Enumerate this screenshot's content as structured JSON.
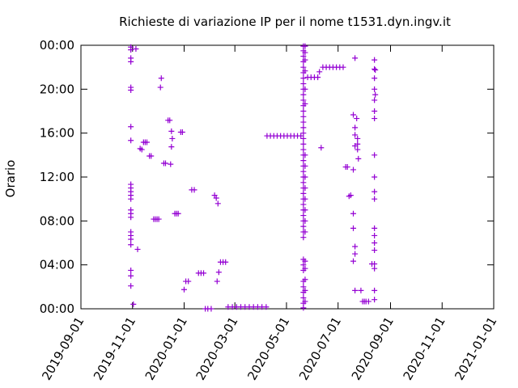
{
  "chart_data": {
    "type": "scatter",
    "title": "Richieste di variazione IP per il nome t1531.dyn.ingv.it",
    "xlabel": "",
    "ylabel": "Orario",
    "xlim": [
      "2019-09-01",
      "2021-01-01"
    ],
    "ylim": [
      "00:00",
      "24:00"
    ],
    "x_ticks": [
      "2019-09-01",
      "2019-11-01",
      "2020-01-01",
      "2020-03-01",
      "2020-05-01",
      "2020-07-01",
      "2020-09-01",
      "2020-11-01",
      "2021-01-01"
    ],
    "y_ticks": [
      "00:00",
      "04:00",
      "08:00",
      "12:00",
      "16:00",
      "20:00",
      "00:00"
    ],
    "marker": "+",
    "color": "#9400d3",
    "grid": false,
    "points": [
      [
        "2019-10-30",
        "23:50"
      ],
      [
        "2019-10-30",
        "23:35"
      ],
      [
        "2019-10-30",
        "22:50"
      ],
      [
        "2019-10-30",
        "22:30"
      ],
      [
        "2019-10-30",
        "20:10"
      ],
      [
        "2019-10-30",
        "19:55"
      ],
      [
        "2019-10-30",
        "16:35"
      ],
      [
        "2019-10-30",
        "15:20"
      ],
      [
        "2019-10-30",
        "11:20"
      ],
      [
        "2019-10-30",
        "11:00"
      ],
      [
        "2019-10-30",
        "10:40"
      ],
      [
        "2019-10-30",
        "10:20"
      ],
      [
        "2019-10-30",
        "10:00"
      ],
      [
        "2019-10-30",
        "09:00"
      ],
      [
        "2019-10-30",
        "08:40"
      ],
      [
        "2019-10-30",
        "08:20"
      ],
      [
        "2019-10-30",
        "07:00"
      ],
      [
        "2019-10-30",
        "06:40"
      ],
      [
        "2019-10-30",
        "06:20"
      ],
      [
        "2019-10-30",
        "05:50"
      ],
      [
        "2019-10-30",
        "03:30"
      ],
      [
        "2019-10-30",
        "03:00"
      ],
      [
        "2019-10-30",
        "02:05"
      ],
      [
        "2019-11-02",
        "00:25"
      ],
      [
        "2019-11-05",
        "23:40"
      ],
      [
        "2019-11-07",
        "05:25"
      ],
      [
        "2019-11-10",
        "14:35"
      ],
      [
        "2019-11-12",
        "14:30"
      ],
      [
        "2019-11-14",
        "15:10"
      ],
      [
        "2019-11-16",
        "15:10"
      ],
      [
        "2019-11-18",
        "15:10"
      ],
      [
        "2019-11-21",
        "13:55"
      ],
      [
        "2019-11-23",
        "13:55"
      ],
      [
        "2019-11-26",
        "08:10"
      ],
      [
        "2019-11-28",
        "08:10"
      ],
      [
        "2019-11-30",
        "08:10"
      ],
      [
        "2019-12-02",
        "08:10"
      ],
      [
        "2019-12-04",
        "20:10"
      ],
      [
        "2019-12-05",
        "21:00"
      ],
      [
        "2019-12-08",
        "13:15"
      ],
      [
        "2019-12-10",
        "13:15"
      ],
      [
        "2019-12-13",
        "17:10"
      ],
      [
        "2019-12-15",
        "17:10"
      ],
      [
        "2019-12-16",
        "13:10"
      ],
      [
        "2019-12-17",
        "16:10"
      ],
      [
        "2019-12-17",
        "14:45"
      ],
      [
        "2019-12-18",
        "15:30"
      ],
      [
        "2019-12-21",
        "08:40"
      ],
      [
        "2019-12-23",
        "08:40"
      ],
      [
        "2019-12-25",
        "08:40"
      ],
      [
        "2019-12-28",
        "16:05"
      ],
      [
        "2019-12-30",
        "16:05"
      ],
      [
        "2020-01-01",
        "01:45"
      ],
      [
        "2020-01-03",
        "02:30"
      ],
      [
        "2020-01-06",
        "02:30"
      ],
      [
        "2020-01-10",
        "10:50"
      ],
      [
        "2020-01-13",
        "10:50"
      ],
      [
        "2020-01-18",
        "03:15"
      ],
      [
        "2020-01-21",
        "03:15"
      ],
      [
        "2020-01-24",
        "03:15"
      ],
      [
        "2020-01-26",
        "00:00"
      ],
      [
        "2020-01-29",
        "00:00"
      ],
      [
        "2020-02-02",
        "00:00"
      ],
      [
        "2020-02-06",
        "10:20"
      ],
      [
        "2020-02-08",
        "10:05"
      ],
      [
        "2020-02-10",
        "09:35"
      ],
      [
        "2020-02-09",
        "02:30"
      ],
      [
        "2020-02-11",
        "03:20"
      ],
      [
        "2020-02-13",
        "04:15"
      ],
      [
        "2020-02-16",
        "04:15"
      ],
      [
        "2020-02-19",
        "04:15"
      ],
      [
        "2020-02-22",
        "00:10"
      ],
      [
        "2020-02-27",
        "00:10"
      ],
      [
        "2020-03-03",
        "00:10"
      ],
      [
        "2020-03-08",
        "00:10"
      ],
      [
        "2020-03-13",
        "00:10"
      ],
      [
        "2020-03-18",
        "00:10"
      ],
      [
        "2020-03-23",
        "00:10"
      ],
      [
        "2020-03-28",
        "00:10"
      ],
      [
        "2020-04-02",
        "00:10"
      ],
      [
        "2020-04-07",
        "00:10"
      ],
      [
        "2020-04-08",
        "15:45"
      ],
      [
        "2020-04-12",
        "15:45"
      ],
      [
        "2020-04-16",
        "15:45"
      ],
      [
        "2020-04-20",
        "15:45"
      ],
      [
        "2020-04-24",
        "15:45"
      ],
      [
        "2020-04-28",
        "15:45"
      ],
      [
        "2020-05-02",
        "15:45"
      ],
      [
        "2020-05-06",
        "15:45"
      ],
      [
        "2020-05-10",
        "15:45"
      ],
      [
        "2020-05-14",
        "15:45"
      ],
      [
        "2020-05-18",
        "15:45"
      ],
      [
        "2020-05-21",
        "23:55"
      ],
      [
        "2020-05-21",
        "23:30"
      ],
      [
        "2020-05-21",
        "23:00"
      ],
      [
        "2020-05-21",
        "22:30"
      ],
      [
        "2020-05-21",
        "22:00"
      ],
      [
        "2020-05-21",
        "21:30"
      ],
      [
        "2020-05-21",
        "21:00"
      ],
      [
        "2020-05-21",
        "20:30"
      ],
      [
        "2020-05-21",
        "20:00"
      ],
      [
        "2020-05-21",
        "19:30"
      ],
      [
        "2020-05-21",
        "19:00"
      ],
      [
        "2020-05-21",
        "18:30"
      ],
      [
        "2020-05-21",
        "18:00"
      ],
      [
        "2020-05-21",
        "17:30"
      ],
      [
        "2020-05-21",
        "17:00"
      ],
      [
        "2020-05-21",
        "16:30"
      ],
      [
        "2020-05-21",
        "16:00"
      ],
      [
        "2020-05-21",
        "15:30"
      ],
      [
        "2020-05-21",
        "15:00"
      ],
      [
        "2020-05-21",
        "14:30"
      ],
      [
        "2020-05-21",
        "14:00"
      ],
      [
        "2020-05-21",
        "13:30"
      ],
      [
        "2020-05-21",
        "13:00"
      ],
      [
        "2020-05-21",
        "12:30"
      ],
      [
        "2020-05-21",
        "12:00"
      ],
      [
        "2020-05-21",
        "11:30"
      ],
      [
        "2020-05-21",
        "11:00"
      ],
      [
        "2020-05-21",
        "10:30"
      ],
      [
        "2020-05-21",
        "10:00"
      ],
      [
        "2020-05-21",
        "09:30"
      ],
      [
        "2020-05-21",
        "09:00"
      ],
      [
        "2020-05-21",
        "08:30"
      ],
      [
        "2020-05-21",
        "08:00"
      ],
      [
        "2020-05-21",
        "07:30"
      ],
      [
        "2020-05-21",
        "07:00"
      ],
      [
        "2020-05-21",
        "06:30"
      ],
      [
        "2020-05-21",
        "04:30"
      ],
      [
        "2020-05-21",
        "04:00"
      ],
      [
        "2020-05-21",
        "03:30"
      ],
      [
        "2020-05-21",
        "02:30"
      ],
      [
        "2020-05-21",
        "02:00"
      ],
      [
        "2020-05-21",
        "01:30"
      ],
      [
        "2020-05-21",
        "01:00"
      ],
      [
        "2020-05-21",
        "00:30"
      ],
      [
        "2020-05-21",
        "00:05"
      ],
      [
        "2020-05-23",
        "23:55"
      ],
      [
        "2020-05-23",
        "23:20"
      ],
      [
        "2020-05-23",
        "22:40"
      ],
      [
        "2020-05-23",
        "21:40"
      ],
      [
        "2020-05-23",
        "20:00"
      ],
      [
        "2020-05-23",
        "18:40"
      ],
      [
        "2020-05-23",
        "14:00"
      ],
      [
        "2020-05-23",
        "13:00"
      ],
      [
        "2020-05-23",
        "12:00"
      ],
      [
        "2020-05-23",
        "11:00"
      ],
      [
        "2020-05-23",
        "10:00"
      ],
      [
        "2020-05-23",
        "09:00"
      ],
      [
        "2020-05-23",
        "08:00"
      ],
      [
        "2020-05-23",
        "07:00"
      ],
      [
        "2020-05-23",
        "04:20"
      ],
      [
        "2020-05-23",
        "03:40"
      ],
      [
        "2020-05-23",
        "02:40"
      ],
      [
        "2020-05-23",
        "01:40"
      ],
      [
        "2020-05-23",
        "00:40"
      ],
      [
        "2020-05-26",
        "21:05"
      ],
      [
        "2020-05-30",
        "21:05"
      ],
      [
        "2020-06-03",
        "21:05"
      ],
      [
        "2020-06-07",
        "21:05"
      ],
      [
        "2020-06-09",
        "21:35"
      ],
      [
        "2020-06-11",
        "14:40"
      ],
      [
        "2020-06-13",
        "22:00"
      ],
      [
        "2020-06-17",
        "22:00"
      ],
      [
        "2020-06-21",
        "22:00"
      ],
      [
        "2020-06-25",
        "22:00"
      ],
      [
        "2020-06-29",
        "22:00"
      ],
      [
        "2020-07-03",
        "22:00"
      ],
      [
        "2020-07-07",
        "22:00"
      ],
      [
        "2020-07-10",
        "12:55"
      ],
      [
        "2020-07-12",
        "12:55"
      ],
      [
        "2020-07-14",
        "10:15"
      ],
      [
        "2020-07-16",
        "10:20"
      ],
      [
        "2020-07-19",
        "17:40"
      ],
      [
        "2020-07-19",
        "12:40"
      ],
      [
        "2020-07-19",
        "08:40"
      ],
      [
        "2020-07-19",
        "07:20"
      ],
      [
        "2020-07-19",
        "04:20"
      ],
      [
        "2020-07-21",
        "15:50"
      ],
      [
        "2020-07-21",
        "14:50"
      ],
      [
        "2020-07-21",
        "16:30"
      ],
      [
        "2020-07-21",
        "05:40"
      ],
      [
        "2020-07-21",
        "05:00"
      ],
      [
        "2020-07-21",
        "01:40"
      ],
      [
        "2020-07-21",
        "22:50"
      ],
      [
        "2020-07-23",
        "17:20"
      ],
      [
        "2020-07-24",
        "15:30"
      ],
      [
        "2020-07-24",
        "15:00"
      ],
      [
        "2020-07-24",
        "14:30"
      ],
      [
        "2020-07-25",
        "13:40"
      ],
      [
        "2020-07-28",
        "01:40"
      ],
      [
        "2020-07-30",
        "00:40"
      ],
      [
        "2020-08-01",
        "00:40"
      ],
      [
        "2020-08-03",
        "00:40"
      ],
      [
        "2020-08-06",
        "00:40"
      ],
      [
        "2020-08-10",
        "04:05"
      ],
      [
        "2020-08-13",
        "04:05"
      ],
      [
        "2020-08-13",
        "22:40"
      ],
      [
        "2020-08-13",
        "21:50"
      ],
      [
        "2020-08-13",
        "21:00"
      ],
      [
        "2020-08-13",
        "20:00"
      ],
      [
        "2020-08-13",
        "19:00"
      ],
      [
        "2020-08-13",
        "18:00"
      ],
      [
        "2020-08-13",
        "17:20"
      ],
      [
        "2020-08-13",
        "14:00"
      ],
      [
        "2020-08-13",
        "12:00"
      ],
      [
        "2020-08-13",
        "10:40"
      ],
      [
        "2020-08-13",
        "10:00"
      ],
      [
        "2020-08-13",
        "07:20"
      ],
      [
        "2020-08-13",
        "06:40"
      ],
      [
        "2020-08-13",
        "06:00"
      ],
      [
        "2020-08-13",
        "05:20"
      ],
      [
        "2020-08-13",
        "03:40"
      ],
      [
        "2020-08-13",
        "01:40"
      ],
      [
        "2020-08-13",
        "00:50"
      ],
      [
        "2020-08-14",
        "21:45"
      ],
      [
        "2020-08-14",
        "19:30"
      ]
    ]
  }
}
